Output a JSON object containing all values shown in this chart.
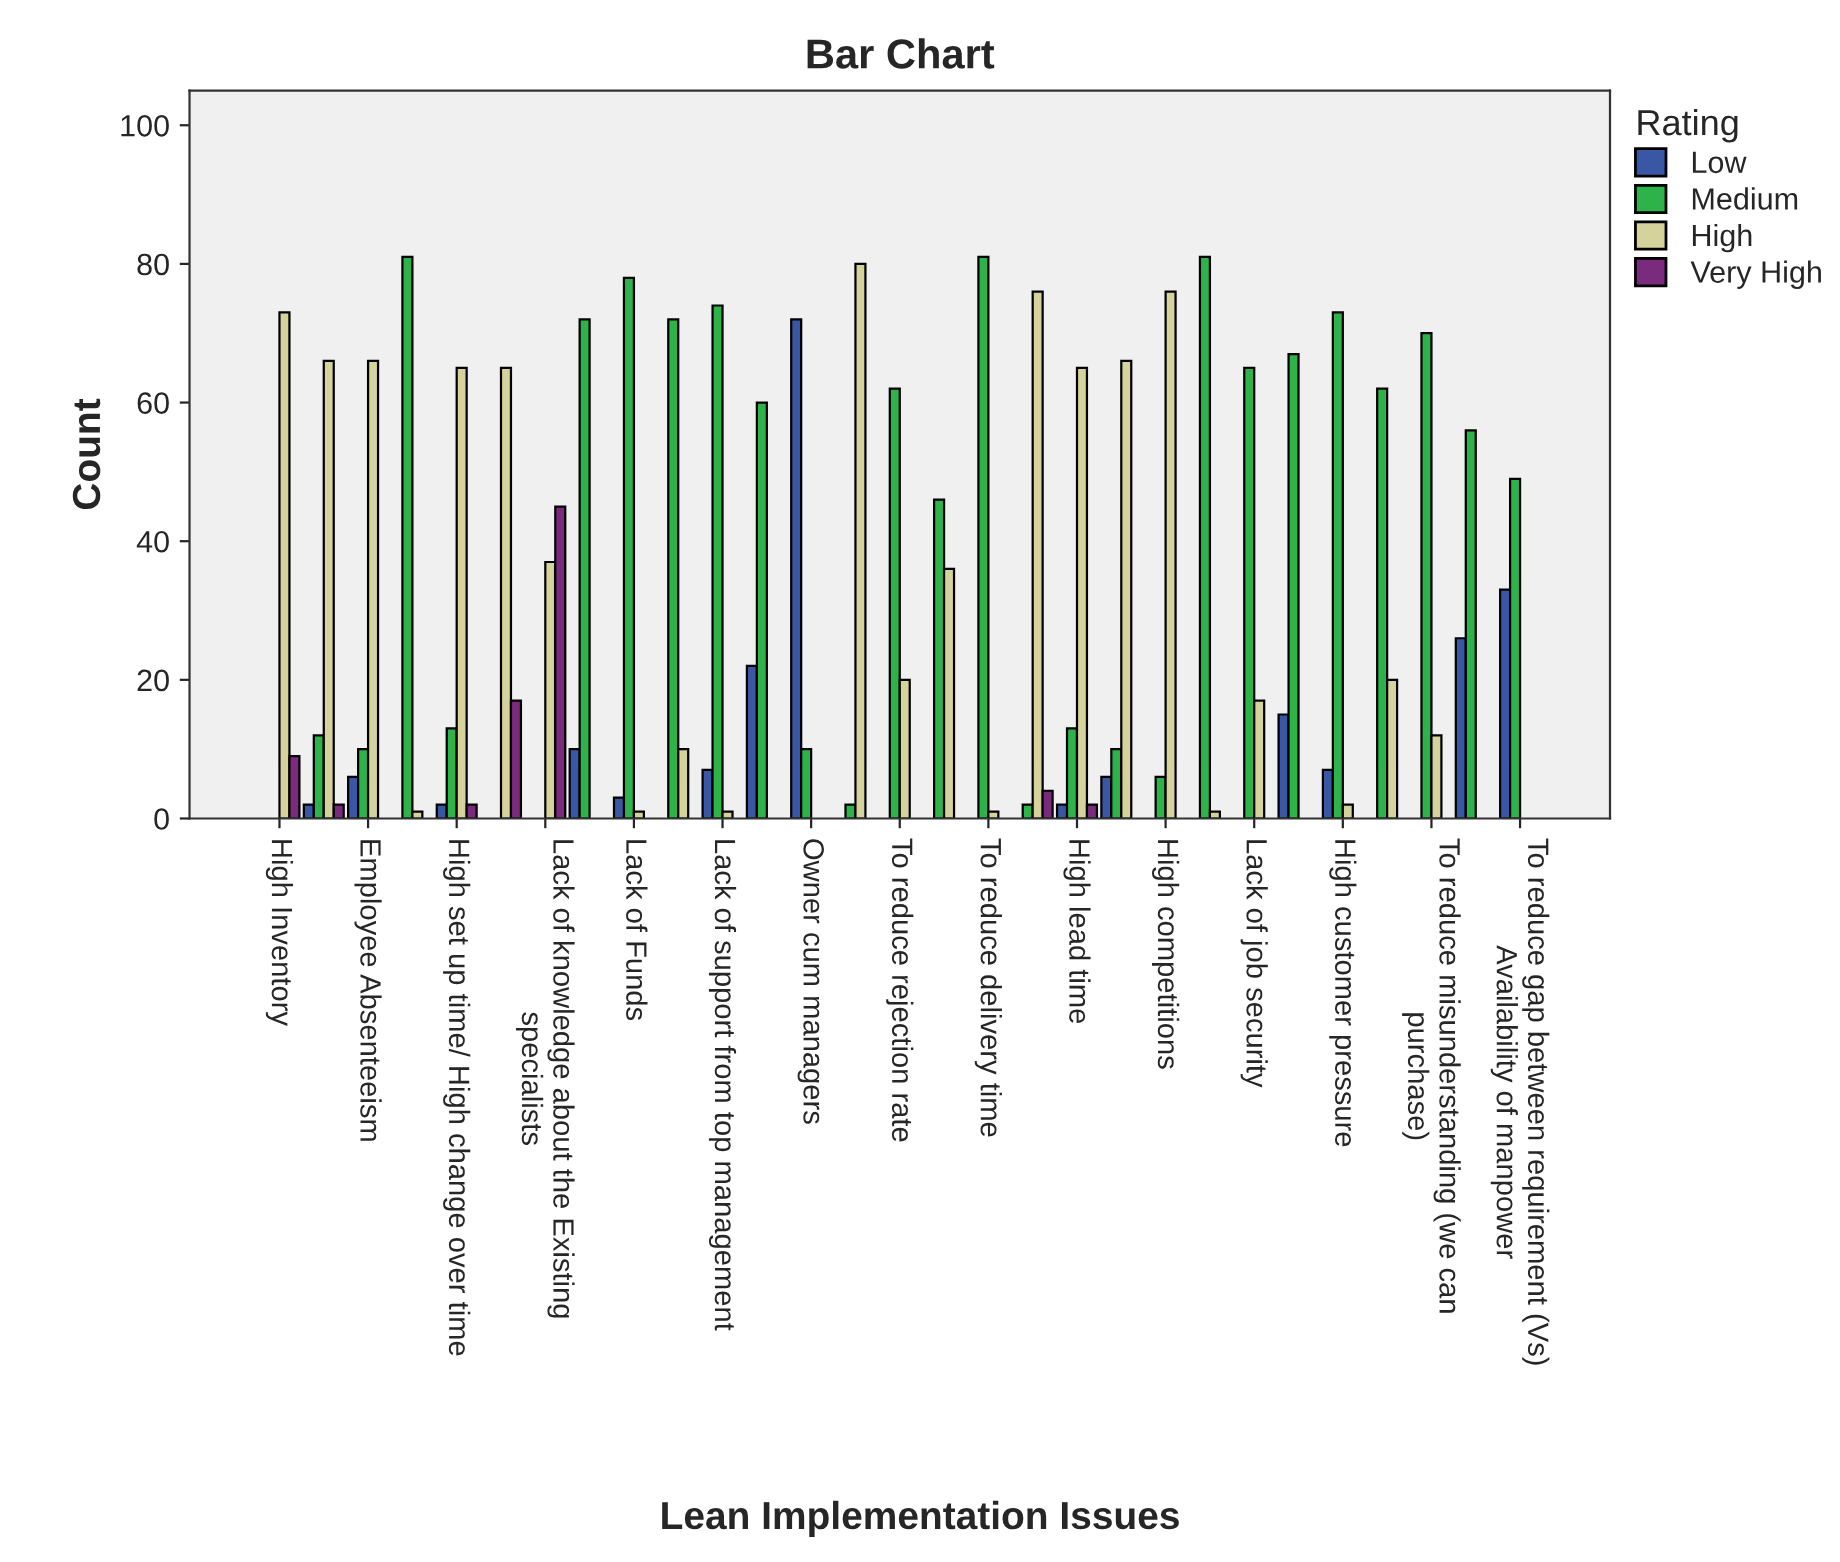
{
  "chart_data": {
    "type": "bar",
    "title": "Bar Chart",
    "xlabel": "Lean Implementation Issues",
    "ylabel": "Count",
    "legend_title": "Rating",
    "categories": [
      "High Inventory",
      null,
      "Employee Absenteeism",
      null,
      "High set up time/ High change over time",
      null,
      "Lack of knowledge about the Existing\nspecialists",
      null,
      "Lack of Funds",
      null,
      "Lack of support from top management",
      null,
      "Owner cum managers",
      null,
      "To reduce rejection rate",
      null,
      "To reduce delivery time",
      null,
      "High lead time",
      null,
      "High competitions",
      null,
      "Lack of job security",
      null,
      "High customer pressure",
      null,
      "To reduce misunderstanding (we can\npurchase)",
      null,
      "To reduce gap between requirement (Vs)\nAvailability of manpower"
    ],
    "series": [
      {
        "name": "Low",
        "color": "#3a57a6",
        "values": [
          null,
          2,
          6,
          null,
          2,
          null,
          null,
          10,
          3,
          null,
          7,
          22,
          72,
          null,
          null,
          null,
          null,
          null,
          2,
          6,
          null,
          null,
          null,
          15,
          7,
          null,
          null,
          26,
          33
        ]
      },
      {
        "name": "Medium",
        "color": "#2db34a",
        "values": [
          null,
          12,
          10,
          81,
          13,
          null,
          null,
          72,
          78,
          72,
          74,
          60,
          10,
          2,
          62,
          46,
          81,
          2,
          13,
          10,
          6,
          81,
          65,
          67,
          73,
          62,
          70,
          56,
          49
        ]
      },
      {
        "name": "High",
        "color": "#d6d29c",
        "values": [
          73,
          66,
          66,
          1,
          65,
          65,
          37,
          null,
          1,
          10,
          1,
          null,
          null,
          80,
          20,
          36,
          1,
          76,
          65,
          66,
          76,
          1,
          17,
          null,
          2,
          20,
          12,
          null,
          null
        ]
      },
      {
        "name": "Very High",
        "color": "#7b2b7d",
        "values": [
          9,
          2,
          null,
          null,
          2,
          17,
          45,
          null,
          null,
          null,
          null,
          null,
          null,
          null,
          null,
          null,
          null,
          4,
          2,
          null,
          null,
          null,
          null,
          null,
          null,
          null,
          null,
          null,
          null
        ]
      }
    ],
    "ylim": [
      0,
      105
    ],
    "yticks": [
      0,
      20,
      40,
      60,
      80,
      100
    ],
    "grid": false,
    "legend": "top right"
  }
}
